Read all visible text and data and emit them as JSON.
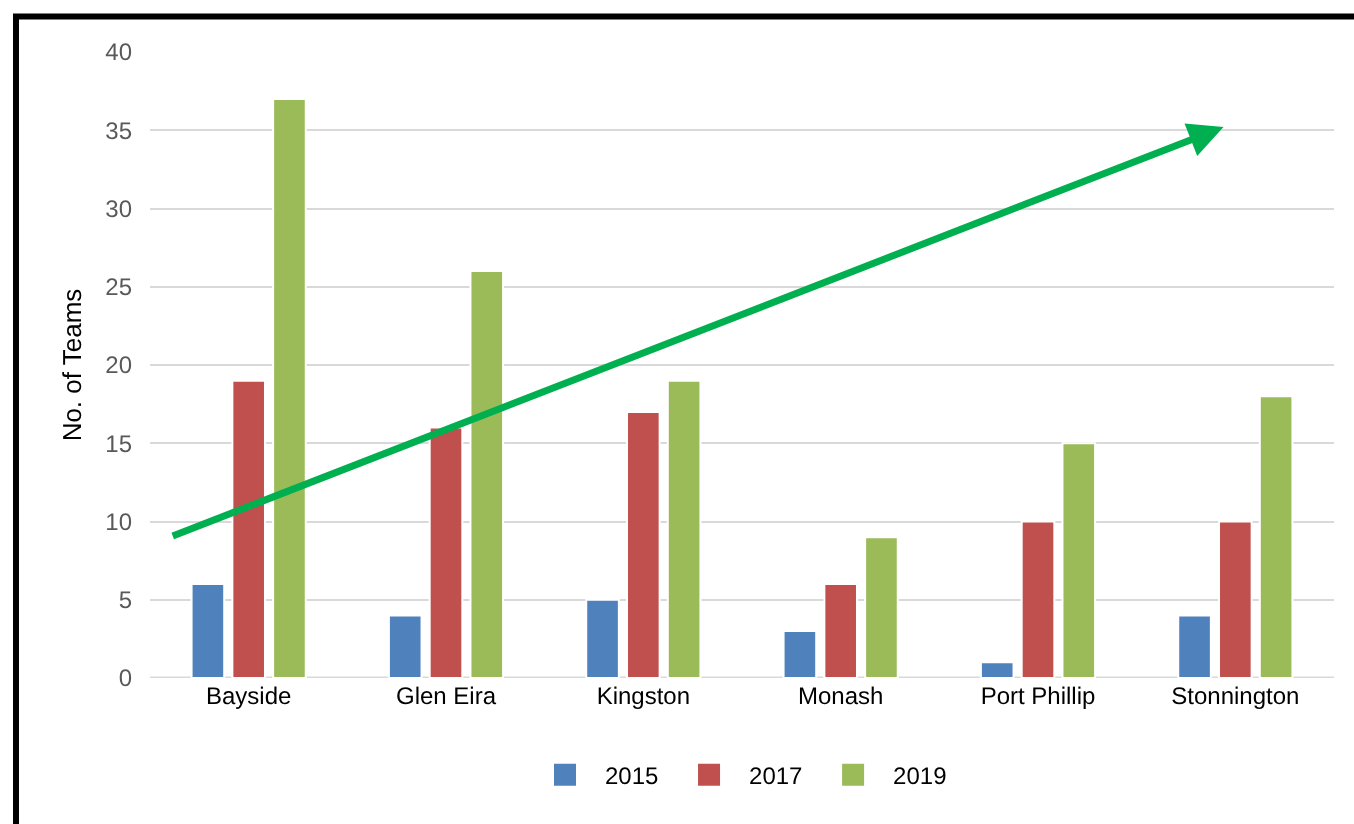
{
  "chart_data": {
    "type": "bar",
    "ylabel": "No. of Teams",
    "categories": [
      "Bayside",
      "Glen Eira",
      "Kingston",
      "Monash",
      "Port Phillip",
      "Stonnington"
    ],
    "series": [
      {
        "name": "2015",
        "color": "#4f81bd",
        "values": [
          6,
          4,
          5,
          3,
          1,
          4
        ]
      },
      {
        "name": "2017",
        "color": "#c0504d",
        "values": [
          19,
          16,
          17,
          6,
          10,
          10
        ]
      },
      {
        "name": "2019",
        "color": "#9bbb59",
        "values": [
          37,
          26,
          19,
          9,
          15,
          18
        ]
      }
    ],
    "ylim": [
      0,
      40
    ],
    "yticks": [
      0,
      5,
      10,
      15,
      20,
      25,
      30,
      35,
      40
    ],
    "grid": "y",
    "legend": "bottom"
  }
}
